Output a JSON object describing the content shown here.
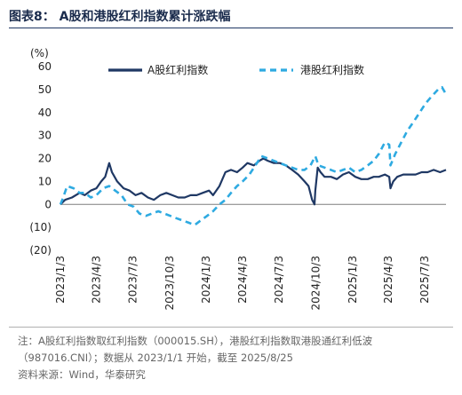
{
  "figure": {
    "title": "图表8： A股和港股红利指数累计涨跌幅",
    "notes": [
      "注：A股红利指数取红利指数（000015.SH），港股红利指数取港股通红利低波",
      "（987016.CNI）；数据从 2023/1/1 开始，截至 2025/8/25",
      "资料来源：Wind，华泰研究"
    ]
  },
  "chart_data": {
    "type": "line",
    "ylabel": "(%)",
    "ylim": [
      -20,
      60
    ],
    "yticks": [
      -20,
      -10,
      0,
      10,
      20,
      30,
      40,
      50,
      60
    ],
    "ytick_labels": [
      "(20)",
      "(10)",
      "0",
      "10",
      "20",
      "30",
      "40",
      "50",
      "60"
    ],
    "xlim": [
      "2023-01-03",
      "2025-08-25"
    ],
    "xticks": [
      "2023-01-03",
      "2023-04-03",
      "2023-07-03",
      "2023-10-03",
      "2024-01-03",
      "2024-04-03",
      "2024-07-03",
      "2024-10-03",
      "2025-01-03",
      "2025-04-03",
      "2025-07-03"
    ],
    "xtick_labels": [
      "2023/1/3",
      "2023/4/3",
      "2023/7/3",
      "2023/10/3",
      "2024/1/3",
      "2024/4/3",
      "2024/7/3",
      "2024/10/3",
      "2025/1/3",
      "2025/4/3",
      "2025/7/3"
    ],
    "grid": false,
    "legend_position": "top",
    "series": [
      {
        "name": "A股红利指数",
        "color": "#1f3864",
        "style": "solid",
        "points": [
          [
            "2023-01-03",
            0
          ],
          [
            "2023-01-15",
            2
          ],
          [
            "2023-02-01",
            3
          ],
          [
            "2023-02-20",
            5
          ],
          [
            "2023-03-05",
            4
          ],
          [
            "2023-03-20",
            6
          ],
          [
            "2023-04-03",
            7
          ],
          [
            "2023-04-15",
            10
          ],
          [
            "2023-04-25",
            12
          ],
          [
            "2023-05-05",
            18
          ],
          [
            "2023-05-12",
            14
          ],
          [
            "2023-05-25",
            10
          ],
          [
            "2023-06-10",
            7
          ],
          [
            "2023-06-25",
            6
          ],
          [
            "2023-07-10",
            4
          ],
          [
            "2023-07-25",
            5
          ],
          [
            "2023-08-10",
            3
          ],
          [
            "2023-08-25",
            2
          ],
          [
            "2023-09-10",
            4
          ],
          [
            "2023-09-25",
            5
          ],
          [
            "2023-10-10",
            4
          ],
          [
            "2023-10-25",
            3
          ],
          [
            "2023-11-10",
            3
          ],
          [
            "2023-11-25",
            4
          ],
          [
            "2023-12-10",
            4
          ],
          [
            "2023-12-25",
            5
          ],
          [
            "2024-01-10",
            6
          ],
          [
            "2024-01-20",
            4
          ],
          [
            "2024-02-05",
            8
          ],
          [
            "2024-02-20",
            14
          ],
          [
            "2024-03-05",
            15
          ],
          [
            "2024-03-20",
            14
          ],
          [
            "2024-04-03",
            16
          ],
          [
            "2024-04-15",
            18
          ],
          [
            "2024-05-01",
            17
          ],
          [
            "2024-05-15",
            19
          ],
          [
            "2024-05-25",
            20
          ],
          [
            "2024-06-05",
            19
          ],
          [
            "2024-06-20",
            18
          ],
          [
            "2024-07-05",
            18
          ],
          [
            "2024-07-20",
            17
          ],
          [
            "2024-08-05",
            15
          ],
          [
            "2024-08-20",
            13
          ],
          [
            "2024-09-05",
            10
          ],
          [
            "2024-09-15",
            8
          ],
          [
            "2024-09-24",
            2
          ],
          [
            "2024-09-30",
            0
          ],
          [
            "2024-10-02",
            6
          ],
          [
            "2024-10-08",
            16
          ],
          [
            "2024-10-15",
            14
          ],
          [
            "2024-10-25",
            12
          ],
          [
            "2024-11-10",
            12
          ],
          [
            "2024-11-25",
            11
          ],
          [
            "2024-12-10",
            13
          ],
          [
            "2024-12-25",
            14
          ],
          [
            "2025-01-10",
            12
          ],
          [
            "2025-01-25",
            11
          ],
          [
            "2025-02-10",
            11
          ],
          [
            "2025-02-25",
            12
          ],
          [
            "2025-03-10",
            12
          ],
          [
            "2025-03-25",
            13
          ],
          [
            "2025-04-05",
            12
          ],
          [
            "2025-04-08",
            7
          ],
          [
            "2025-04-15",
            10
          ],
          [
            "2025-04-25",
            12
          ],
          [
            "2025-05-10",
            13
          ],
          [
            "2025-05-25",
            13
          ],
          [
            "2025-06-10",
            13
          ],
          [
            "2025-06-25",
            14
          ],
          [
            "2025-07-10",
            14
          ],
          [
            "2025-07-25",
            15
          ],
          [
            "2025-08-10",
            14
          ],
          [
            "2025-08-25",
            15
          ]
        ]
      },
      {
        "name": "港股红利指数",
        "color": "#2eaae1",
        "style": "dashed",
        "points": [
          [
            "2023-01-03",
            0
          ],
          [
            "2023-01-10",
            3
          ],
          [
            "2023-01-20",
            8
          ],
          [
            "2023-02-05",
            7
          ],
          [
            "2023-02-20",
            5
          ],
          [
            "2023-03-05",
            5
          ],
          [
            "2023-03-20",
            3
          ],
          [
            "2023-04-03",
            4
          ],
          [
            "2023-04-20",
            7
          ],
          [
            "2023-05-05",
            8
          ],
          [
            "2023-05-20",
            6
          ],
          [
            "2023-06-05",
            4
          ],
          [
            "2023-06-20",
            0
          ],
          [
            "2023-07-05",
            -1
          ],
          [
            "2023-07-20",
            -4
          ],
          [
            "2023-08-05",
            -5
          ],
          [
            "2023-08-20",
            -4
          ],
          [
            "2023-09-05",
            -3
          ],
          [
            "2023-09-20",
            -4
          ],
          [
            "2023-10-05",
            -5
          ],
          [
            "2023-10-20",
            -6
          ],
          [
            "2023-11-05",
            -7
          ],
          [
            "2023-11-20",
            -8
          ],
          [
            "2023-12-05",
            -9
          ],
          [
            "2023-12-20",
            -7
          ],
          [
            "2024-01-05",
            -5
          ],
          [
            "2024-01-20",
            -3
          ],
          [
            "2024-02-05",
            0
          ],
          [
            "2024-02-20",
            2
          ],
          [
            "2024-03-05",
            5
          ],
          [
            "2024-03-20",
            8
          ],
          [
            "2024-04-03",
            10
          ],
          [
            "2024-04-20",
            13
          ],
          [
            "2024-05-05",
            17
          ],
          [
            "2024-05-20",
            21
          ],
          [
            "2024-06-05",
            20
          ],
          [
            "2024-06-20",
            19
          ],
          [
            "2024-07-05",
            18
          ],
          [
            "2024-07-20",
            17
          ],
          [
            "2024-08-05",
            16
          ],
          [
            "2024-08-20",
            15
          ],
          [
            "2024-09-05",
            15
          ],
          [
            "2024-09-20",
            17
          ],
          [
            "2024-10-02",
            21
          ],
          [
            "2024-10-10",
            17
          ],
          [
            "2024-10-25",
            16
          ],
          [
            "2024-11-10",
            15
          ],
          [
            "2024-11-25",
            14
          ],
          [
            "2024-12-10",
            15
          ],
          [
            "2024-12-25",
            16
          ],
          [
            "2025-01-10",
            14
          ],
          [
            "2025-01-25",
            15
          ],
          [
            "2025-02-10",
            17
          ],
          [
            "2025-02-25",
            19
          ],
          [
            "2025-03-10",
            22
          ],
          [
            "2025-03-25",
            27
          ],
          [
            "2025-04-05",
            26
          ],
          [
            "2025-04-08",
            17
          ],
          [
            "2025-04-20",
            22
          ],
          [
            "2025-05-05",
            27
          ],
          [
            "2025-05-20",
            32
          ],
          [
            "2025-06-05",
            36
          ],
          [
            "2025-06-20",
            40
          ],
          [
            "2025-07-05",
            44
          ],
          [
            "2025-07-20",
            47
          ],
          [
            "2025-08-05",
            50
          ],
          [
            "2025-08-15",
            51
          ],
          [
            "2025-08-25",
            48
          ]
        ]
      }
    ]
  }
}
